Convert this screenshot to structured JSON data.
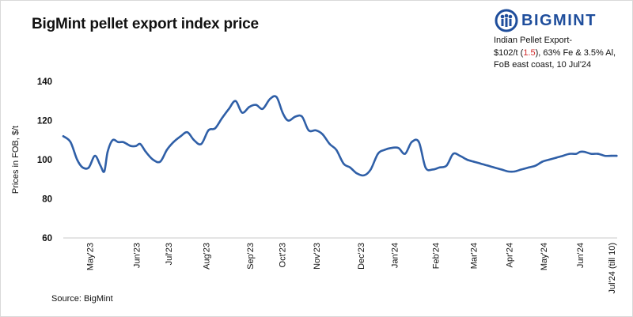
{
  "title": "BigMint pellet export index price",
  "brand": {
    "name": "BIGMINT",
    "color": "#1f4e9c"
  },
  "annotation": {
    "line1": "Indian Pellet Export-",
    "line2_prefix": "$102/t (",
    "change": "1.5",
    "line2_suffix": "), 63% Fe & 3.5% Al,",
    "line3": "FoB east coast,  10 Jul'24"
  },
  "source": "Source: BigMint",
  "colors": {
    "line": "#2f5fa7",
    "change": "#d22b2b"
  },
  "chart_data": {
    "type": "line",
    "title": "BigMint pellet export index price",
    "xlabel": "",
    "ylabel": "Prices in FOB, $/t",
    "ylim": [
      60,
      140
    ],
    "yticks": [
      60,
      80,
      100,
      120,
      140
    ],
    "grid": false,
    "legend": "none",
    "x_range": [
      0,
      100
    ],
    "month_labels": [
      {
        "label": "May'23",
        "x": 4.8
      },
      {
        "label": "Jun'23",
        "x": 13.2
      },
      {
        "label": "Jul'23",
        "x": 19.0
      },
      {
        "label": "Aug'23",
        "x": 25.8
      },
      {
        "label": "Sep'23",
        "x": 33.7
      },
      {
        "label": "Oct'23",
        "x": 39.5
      },
      {
        "label": "Nov'23",
        "x": 45.7
      },
      {
        "label": "Dec'23",
        "x": 53.7
      },
      {
        "label": "Jan'24",
        "x": 59.8
      },
      {
        "label": "Feb'24",
        "x": 67.2
      },
      {
        "label": "Mar'24",
        "x": 74.1
      },
      {
        "label": "Apr'24",
        "x": 80.5
      },
      {
        "label": "May'24",
        "x": 86.7
      },
      {
        "label": "Jun'24",
        "x": 93.3
      },
      {
        "label": "Jul'24 (till 10)",
        "x": 99.0
      }
    ],
    "series": [
      {
        "name": "Indian Pellet Export index",
        "x": [
          0,
          1.3,
          2.5,
          3.5,
          4.6,
          5.7,
          6.7,
          7.4,
          8.0,
          8.9,
          9.9,
          10.8,
          11.5,
          12.2,
          13.1,
          13.9,
          14.9,
          16.2,
          17.5,
          18.7,
          19.9,
          21.2,
          22.4,
          23.6,
          24.9,
          26.2,
          27.4,
          28.6,
          29.9,
          31.1,
          32.3,
          33.6,
          34.8,
          36.0,
          37.3,
          38.5,
          39.6,
          40.6,
          41.9,
          43.1,
          44.3,
          45.6,
          46.8,
          48.1,
          49.3,
          50.6,
          51.8,
          53.0,
          54.3,
          55.5,
          56.8,
          58.0,
          59.2,
          60.5,
          61.7,
          62.9,
          64.2,
          65.4,
          66.7,
          67.9,
          69.2,
          70.4,
          71.6,
          72.9,
          74.1,
          75.3,
          76.6,
          77.8,
          79.1,
          80.3,
          81.5,
          82.7,
          84.0,
          85.3,
          86.5,
          87.7,
          89.0,
          90.2,
          91.4,
          92.6,
          93.3,
          94.1,
          95.3,
          96.5,
          97.8,
          98.9,
          99.9
        ],
        "values": [
          112,
          109,
          100,
          96,
          96,
          102,
          97,
          94,
          104,
          110,
          109,
          109,
          108,
          107,
          107,
          108,
          104,
          100,
          99,
          105,
          109,
          112,
          114,
          110,
          108,
          115,
          116,
          121,
          126,
          130,
          124,
          127,
          128,
          126,
          131,
          132,
          124,
          120,
          122,
          122,
          115,
          115,
          113,
          108,
          105,
          98,
          96,
          93,
          92,
          95,
          103,
          105,
          106,
          106,
          103,
          109,
          109,
          96,
          95,
          96,
          97,
          103,
          102,
          100,
          99,
          98,
          97,
          96,
          95,
          94,
          94,
          95,
          96,
          97,
          99,
          100,
          101,
          102,
          103,
          103,
          104,
          104,
          103,
          103,
          102,
          102,
          102
        ]
      }
    ]
  }
}
